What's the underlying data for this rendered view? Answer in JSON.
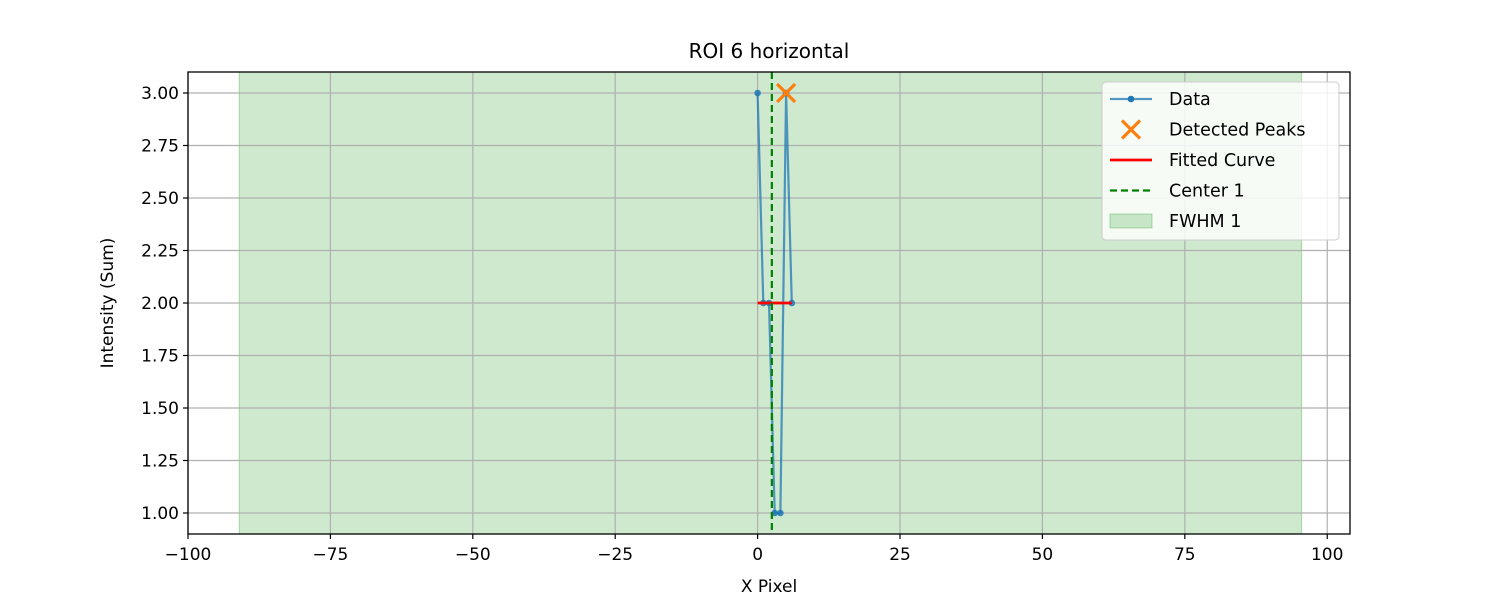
{
  "chart_data": {
    "type": "line",
    "title": "ROI 6 horizontal",
    "xlabel": "X Pixel",
    "ylabel": "Intensity (Sum)",
    "xlim": [
      -100,
      104
    ],
    "ylim": [
      0.9,
      3.1
    ],
    "xticks": [
      -100,
      -75,
      -50,
      -25,
      0,
      25,
      50,
      75,
      100
    ],
    "xtick_labels": [
      "−100",
      "−75",
      "−50",
      "−25",
      "0",
      "25",
      "50",
      "75",
      "100"
    ],
    "yticks": [
      1.0,
      1.25,
      1.5,
      1.75,
      2.0,
      2.25,
      2.5,
      2.75,
      3.0
    ],
    "ytick_labels": [
      "1.00",
      "1.25",
      "1.50",
      "1.75",
      "2.00",
      "2.25",
      "2.50",
      "2.75",
      "3.00"
    ],
    "grid": true,
    "legend_position": "top-right",
    "series": [
      {
        "name": "Data",
        "kind": "line-marker",
        "color": "#1f77b4",
        "x": [
          0,
          1,
          2,
          3,
          4,
          5,
          6
        ],
        "y": [
          3,
          2,
          2,
          1,
          1,
          3,
          2
        ]
      },
      {
        "name": "Detected Peaks",
        "kind": "scatter-x",
        "color": "#ff7f0e",
        "x": [
          5
        ],
        "y": [
          3
        ]
      },
      {
        "name": "Fitted Curve",
        "kind": "line",
        "color": "#ff0000",
        "x": [
          0,
          6
        ],
        "y": [
          2,
          2
        ]
      },
      {
        "name": "Center 1",
        "kind": "vline-dashed",
        "color": "#008000",
        "x": 2.5
      },
      {
        "name": "FWHM 1",
        "kind": "vspan",
        "color": "#2ca02c",
        "x_range": [
          -91,
          95.5
        ]
      }
    ]
  }
}
